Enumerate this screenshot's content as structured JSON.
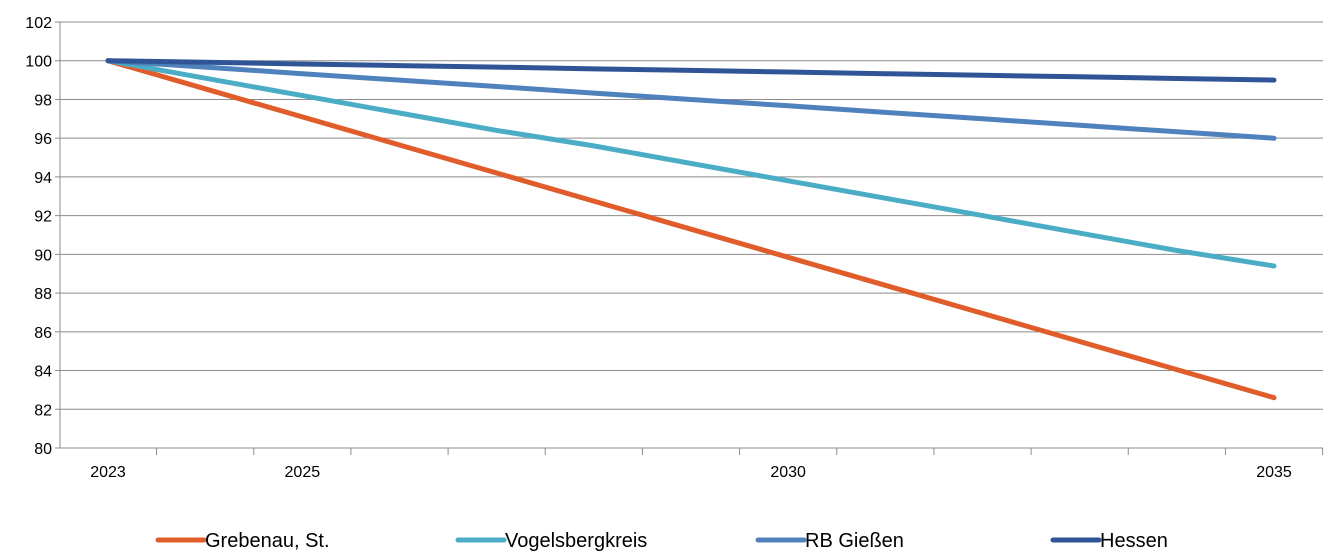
{
  "chart_data": {
    "type": "line",
    "title": "",
    "xlabel": "",
    "ylabel": "",
    "x": [
      2023,
      2024,
      2025,
      2026,
      2027,
      2028,
      2029,
      2030,
      2031,
      2032,
      2033,
      2034,
      2035
    ],
    "x_tick_labels": [
      {
        "x": 2023,
        "label": "2023"
      },
      {
        "x": 2025,
        "label": "2025"
      },
      {
        "x": 2030,
        "label": "2030"
      },
      {
        "x": 2035,
        "label": "2035"
      }
    ],
    "ylim": [
      80,
      102
    ],
    "y_ticks": [
      80,
      82,
      84,
      86,
      88,
      90,
      92,
      94,
      96,
      98,
      100,
      102
    ],
    "grid": "horizontal",
    "legend_position": "bottom",
    "series": [
      {
        "name": "Grebenau, St.",
        "color": "#e05c2a",
        "values": [
          100,
          98.55,
          97.1,
          95.65,
          94.2,
          92.75,
          91.3,
          89.85,
          88.4,
          86.95,
          85.5,
          84.05,
          82.6
        ]
      },
      {
        "name": "Vogelsbergkreis",
        "color": "#4bacc6",
        "values": [
          100,
          99.1,
          98.2,
          97.3,
          96.4,
          95.6,
          94.7,
          93.8,
          92.9,
          92.0,
          91.1,
          90.2,
          89.4
        ]
      },
      {
        "name": "RB Gießen",
        "color": "#4f81bd",
        "values": [
          100,
          99.67,
          99.33,
          99.0,
          98.67,
          98.33,
          98.0,
          97.67,
          97.33,
          97.0,
          96.67,
          96.33,
          96.0
        ]
      },
      {
        "name": "Hessen",
        "color": "#2f5597",
        "values": [
          100,
          99.92,
          99.83,
          99.75,
          99.67,
          99.58,
          99.5,
          99.42,
          99.33,
          99.25,
          99.17,
          99.08,
          99.0
        ]
      }
    ]
  }
}
